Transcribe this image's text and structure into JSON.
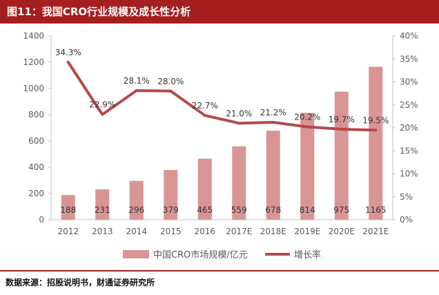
{
  "header": {
    "title": "图11：我国CRO行业规模及成长性分析"
  },
  "footer": {
    "source": "数据来源：招股说明书，财通证券研究所"
  },
  "colors": {
    "title_bg": "#a51f1f",
    "bar": "#d99594",
    "line": "#b5494a",
    "axis_text": "#595959"
  },
  "chart_data": {
    "type": "bar",
    "categories": [
      "2012",
      "2013",
      "2014",
      "2015",
      "2016",
      "2017E",
      "2018E",
      "2019E",
      "2020E",
      "2021E"
    ],
    "series": [
      {
        "name": "中国CRO市场规模/亿元",
        "type": "bar",
        "axis": "left",
        "values": [
          188,
          231,
          296,
          379,
          465,
          559,
          678,
          814,
          975,
          1165
        ],
        "labels": [
          "188",
          "231",
          "296",
          "379",
          "465",
          "559",
          "678",
          "814",
          "975",
          "1165"
        ]
      },
      {
        "name": "增长率",
        "type": "line",
        "axis": "right",
        "values": [
          34.3,
          22.9,
          28.1,
          28.0,
          22.7,
          21.0,
          21.2,
          20.2,
          19.7,
          19.5
        ],
        "labels": [
          "34.3%",
          "22.9%",
          "28.1%",
          "28.0%",
          "22.7%",
          "21.0%",
          "21.2%",
          "20.2%",
          "19.7%",
          "19.5%"
        ]
      }
    ],
    "y_left": {
      "min": 0,
      "max": 1400,
      "ticks": [
        "0",
        "200",
        "400",
        "600",
        "800",
        "1000",
        "1200",
        "1400"
      ]
    },
    "y_right": {
      "min": 0,
      "max": 40,
      "ticks": [
        "0%",
        "5%",
        "10%",
        "15%",
        "20%",
        "25%",
        "30%",
        "35%",
        "40%"
      ]
    },
    "grid": false,
    "legend_position": "bottom"
  }
}
